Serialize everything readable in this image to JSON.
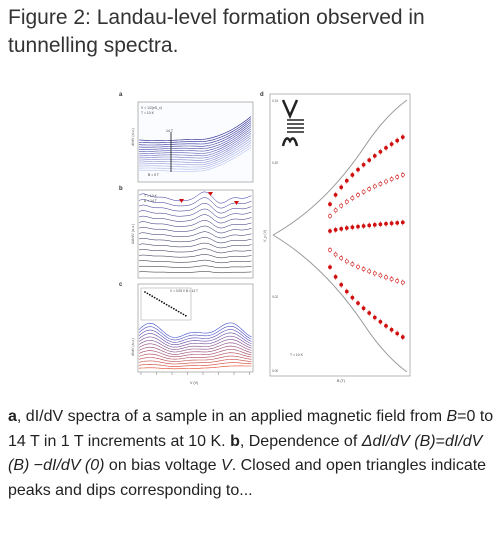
{
  "header": {
    "title": "Figure 2: Landau-level formation observed in tunnelling spectra."
  },
  "figure": {
    "panel_labels": [
      "a",
      "b",
      "c",
      "d"
    ],
    "panel_a": {
      "ylabel": "dI/dV (a.u.)",
      "annotation_top": "V = 1/2(eS_v)",
      "annotation_temp": "T = 10 K",
      "label_high_field": "14 T",
      "label_zero_field": "B = 0 T"
    },
    "panel_b": {
      "annotation_temp": "T = 10 K",
      "label_field": "B = 14 T",
      "ylabel": "ΔdI/dV (a.u.)"
    },
    "panel_c": {
      "annotation": "V = 0.05 V   B = 14 T",
      "ylabel": "dI/dV (a.u.)"
    },
    "panel_d": {
      "ylabel": "V_p (V)",
      "xlabel": "B (T)",
      "tick_top": "0.24",
      "tick_mid": "0.20",
      "tick_low": "0.02",
      "tick_bottom": "0.00",
      "annotation_temp": "T = 10 K"
    },
    "bottom_axis": {
      "xlabel": "V (V)"
    }
  },
  "caption": {
    "label_a": "a",
    "text_1": ", dI/dV spectra of a sample in an applied magnetic field from ",
    "var_B1": "B",
    "text_2": "=0 to 14 T in 1 T increments at 10 K. ",
    "label_b": "b",
    "text_3": ", Dependence of ",
    "expr_delta": "ΔdI/dV (B)",
    "text_4": "=",
    "expr_b": "dI/dV (B)",
    "text_5": " −",
    "expr_0": "dI/dV (0)",
    "text_6": " on bias voltage ",
    "var_V": "V",
    "text_7": ". Closed and open triangles indicate peaks and dips corresponding to..."
  }
}
